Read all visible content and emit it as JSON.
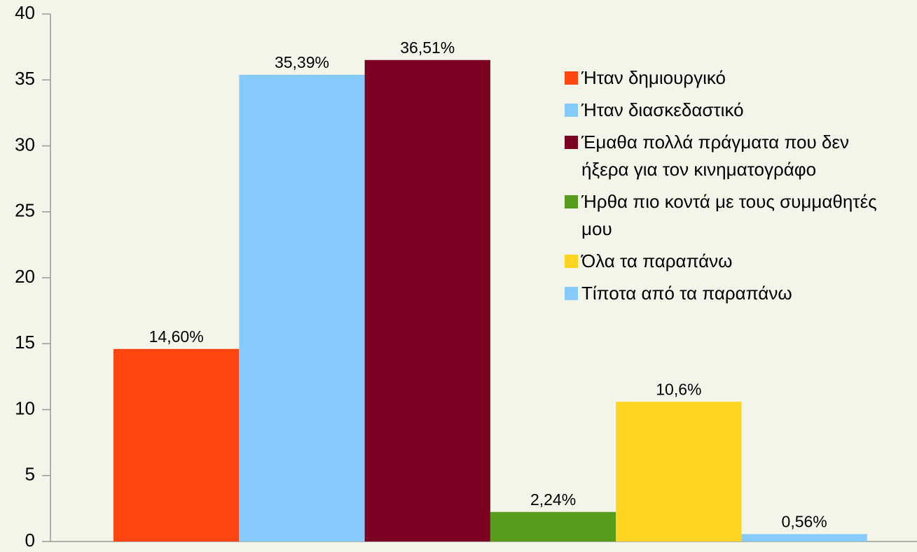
{
  "chart_data": {
    "type": "bar",
    "categories": [
      null
    ],
    "series": [
      {
        "name": "Ήταν δημιουργικό",
        "color": "#ff4611",
        "values": [
          14.6
        ],
        "value_labels": [
          "14,60%"
        ]
      },
      {
        "name": "Ήταν διασκεδαστικό",
        "color": "#87cafe",
        "values": [
          35.39
        ],
        "value_labels": [
          "35,39%"
        ]
      },
      {
        "name": "Έμαθα πολλά πράγματα που δεν ήξερα για τον κινηματογράφο",
        "color": "#7b0021",
        "values": [
          36.51
        ],
        "value_labels": [
          "36,51%"
        ]
      },
      {
        "name": "Ήρθα πιο κοντά με τους συμμαθητές μου",
        "color": "#579c1d",
        "values": [
          2.24
        ],
        "value_labels": [
          "2,24%"
        ]
      },
      {
        "name": "Όλα τα παραπάνω",
        "color": "#ffd521",
        "values": [
          10.6
        ],
        "value_labels": [
          "10,6%"
        ]
      },
      {
        "name": "Τίποτα από τα παραπάνω",
        "color": "#87cafe",
        "values": [
          0.56
        ],
        "value_labels": [
          "0,56%"
        ]
      }
    ],
    "ylim": [
      0,
      40
    ],
    "yticks": [
      0,
      5,
      10,
      15,
      20,
      25,
      30,
      35,
      40
    ],
    "legend": "right"
  }
}
